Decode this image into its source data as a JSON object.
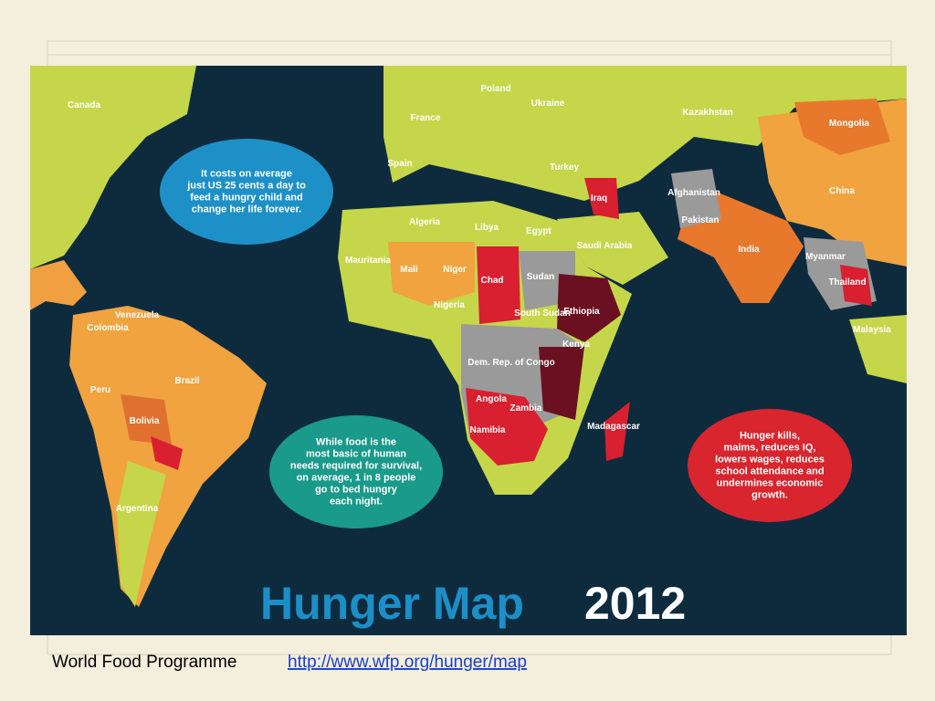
{
  "map": {
    "country_labels": [
      "Canada",
      "Kazakhstan",
      "Mongolia",
      "China",
      "India",
      "Algeria",
      "Libya",
      "Egypt",
      "Mali",
      "Niger",
      "Chad",
      "Sudan",
      "Ethiopia",
      "Kenya",
      "Brazil",
      "Bolivia",
      "Argentina",
      "Colombia",
      "Venezuela",
      "Peru",
      "Angola",
      "Zambia",
      "Namibia",
      "Madagascar",
      "Iraq",
      "Afghanistan",
      "Pakistan",
      "Ukraine",
      "Poland",
      "France",
      "Spain",
      "Turkey",
      "Mauritania",
      "Nigeria",
      "Malaysia",
      "Thailand",
      "Dem. Rep. of Congo",
      "South Sudan",
      "Saudi Arabia",
      "Myanmar"
    ],
    "callouts": [
      {
        "lines": [
          "It costs on average",
          "just US 25 cents a day to",
          "feed a hungry child and",
          "change her life forever."
        ]
      },
      {
        "lines": [
          "While food is the",
          "most basic of human",
          "needs required for survival,",
          "on average, 1 in 8 people",
          "go to bed hungry",
          "each night."
        ]
      },
      {
        "lines": [
          "Hunger kills,",
          "maims, reduces IQ,",
          "lowers wages, reduces",
          "school attendance and",
          "undermines economic",
          "growth."
        ]
      }
    ],
    "title": {
      "main": "Hunger Map",
      "year": "2012"
    }
  },
  "caption": {
    "source": "World Food Programme",
    "link": "http://www.wfp.org/hunger/map"
  }
}
